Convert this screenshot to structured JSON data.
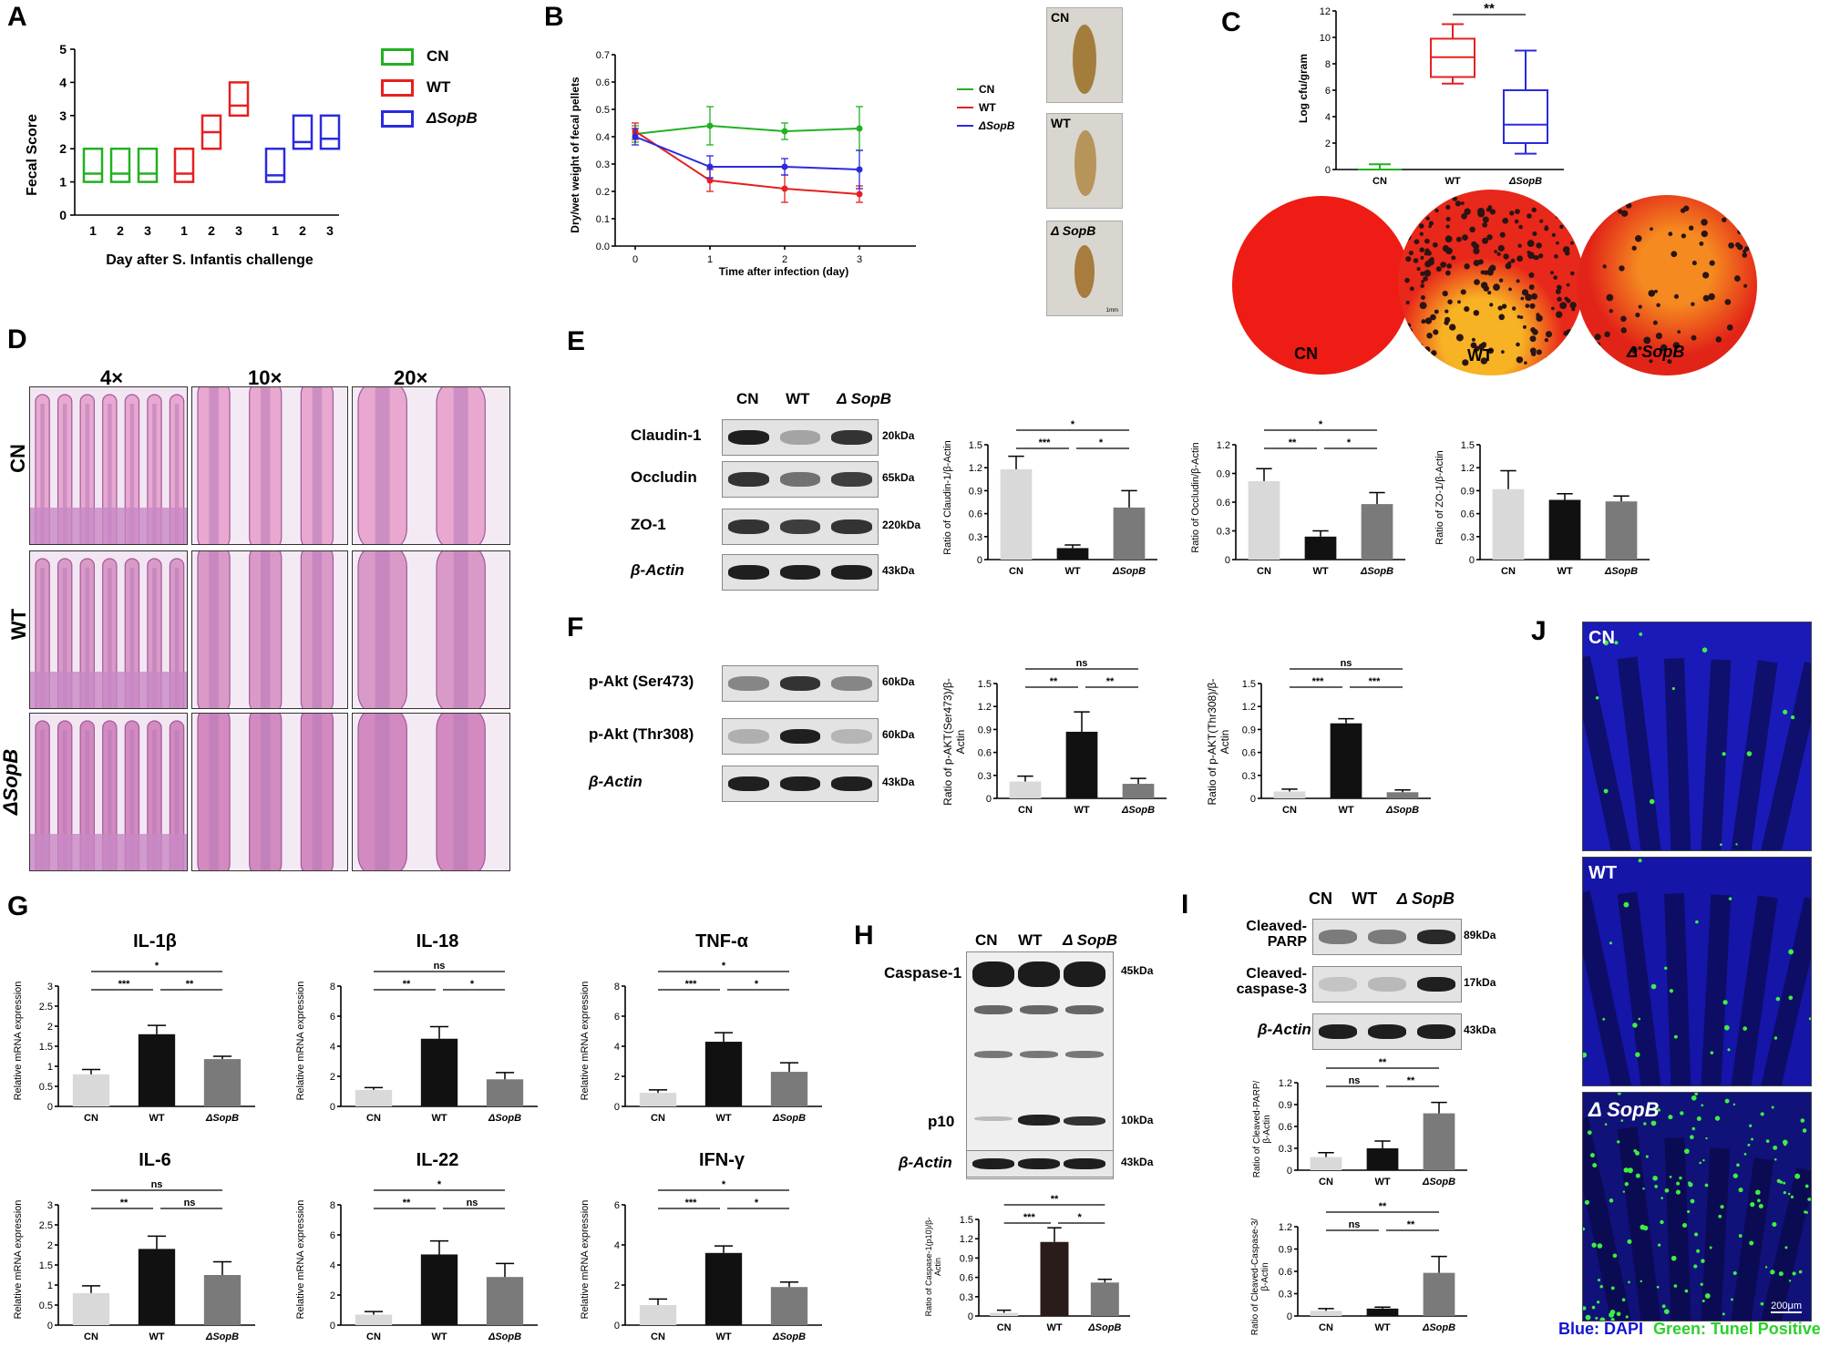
{
  "panel_letters": {
    "A": "A",
    "B": "B",
    "C": "C",
    "D": "D",
    "E": "E",
    "F": "F",
    "G": "G",
    "H": "H",
    "I": "I",
    "J": "J"
  },
  "groups": [
    "CN",
    "WT",
    "ΔSopB"
  ],
  "colors": {
    "cn": "#22b022",
    "wt": "#e52020",
    "sopb": "#2a2ae0",
    "bar_cn": "#d9d9d9",
    "bar_wt": "#111111",
    "bar_sopb": "#7a7a7a",
    "bar_wt_h": "#2a1c1a"
  },
  "A": {
    "ylabel": "Fecal Score",
    "xlabel": "Day after S. Infantis challenge",
    "legend": [
      "CN",
      "WT",
      "ΔSopB"
    ],
    "days": [
      "1",
      "2",
      "3"
    ],
    "yticks": [
      "0",
      "1",
      "2",
      "3",
      "4",
      "5"
    ]
  },
  "B": {
    "ylabel": "Dry/wet weight of fecal pellets",
    "xlabel": "Time after infection (day)",
    "legend": [
      "CN",
      "WT",
      "ΔSopB"
    ],
    "photo_labels": [
      "CN",
      "WT",
      "Δ SopB"
    ],
    "scale_text": "1mm"
  },
  "C": {
    "ylabel": "Log cfu/gram",
    "sig": "**",
    "plate_labels": [
      "CN",
      "WT",
      "Δ SopB"
    ]
  },
  "D": {
    "mag": [
      "4×",
      "10×",
      "20×"
    ],
    "rows": [
      "CN",
      "WT",
      "ΔSopB"
    ]
  },
  "E": {
    "lanes": [
      "CN",
      "WT",
      "Δ SopB"
    ],
    "proteins": [
      "Claudin-1",
      "Occludin",
      "ZO-1",
      "β-Actin"
    ],
    "sizes": [
      "20kDa",
      "65kDa",
      "220kDa",
      "43kDa"
    ],
    "ylabels": [
      "Ratio of Claudin-1/β-Actin",
      "Ratio of Occludin/β-Actin",
      "Ratio of ZO-1/β-Actin"
    ]
  },
  "F": {
    "proteins": [
      "p-Akt (Ser473)",
      "p-Akt (Thr308)",
      "β-Actin"
    ],
    "sizes": [
      "60kDa",
      "60kDa",
      "43kDa"
    ],
    "ylabels": [
      "Ratio of p-AKT(Ser473)/β-Actin",
      "Ratio of p-AKT(Thr308)/β-Actin"
    ]
  },
  "G": {
    "titles": [
      "IL-1β",
      "IL-18",
      "TNF-α",
      "IL-6",
      "IL-22",
      "IFN-γ"
    ],
    "ylabel": "Relative mRNA expression"
  },
  "H": {
    "lanes": [
      "CN",
      "WT",
      "Δ SopB"
    ],
    "proteins": [
      "Caspase-1",
      "p10",
      "β-Actin"
    ],
    "sizes": [
      "45kDa",
      "10kDa",
      "43kDa"
    ],
    "ylabel": "Ratio of Caspase-1(p10)/β-Actin"
  },
  "I": {
    "lanes": [
      "CN",
      "WT",
      "Δ SopB"
    ],
    "proteins": [
      "Cleaved-PARP",
      "Cleaved-caspase-3",
      "β-Actin"
    ],
    "sizes": [
      "89kDa",
      "17kDa",
      "43kDa"
    ],
    "ylabels": [
      "Ratio of Cleaved-PARP/β-Actin",
      "Ratio of Cleaved-Caspase-3/β-Actin"
    ]
  },
  "J": {
    "labels": [
      "CN",
      "WT",
      "Δ SopB"
    ],
    "scale": "200μm",
    "caption_blue": "Blue: DAPI",
    "caption_green": "Green: Tunel Positive"
  },
  "chart_data": [
    {
      "id": "A",
      "type": "box",
      "ylim": [
        0,
        5
      ],
      "categories": [
        "1",
        "2",
        "3"
      ],
      "series": [
        {
          "name": "CN",
          "boxes": [
            [
              1,
              1.25,
              2
            ],
            [
              1,
              1.25,
              2
            ],
            [
              1,
              1.25,
              2
            ]
          ]
        },
        {
          "name": "WT",
          "boxes": [
            [
              1,
              1.25,
              2
            ],
            [
              2,
              2.5,
              3
            ],
            [
              3,
              3.3,
              4
            ]
          ]
        },
        {
          "name": "ΔSopB",
          "boxes": [
            [
              1,
              1.2,
              2
            ],
            [
              2,
              2.2,
              3
            ],
            [
              2,
              2.3,
              3
            ]
          ]
        }
      ]
    },
    {
      "id": "B",
      "type": "line",
      "x": [
        0,
        1,
        2,
        3
      ],
      "ylim": [
        0,
        0.7
      ],
      "series": [
        {
          "name": "CN",
          "values": [
            0.41,
            0.44,
            0.42,
            0.43
          ],
          "err": [
            0.03,
            0.07,
            0.03,
            0.08
          ]
        },
        {
          "name": "WT",
          "values": [
            0.42,
            0.24,
            0.21,
            0.19
          ],
          "err": [
            0.03,
            0.04,
            0.05,
            0.03
          ]
        },
        {
          "name": "ΔSopB",
          "values": [
            0.4,
            0.29,
            0.29,
            0.28
          ],
          "err": [
            0.03,
            0.04,
            0.03,
            0.07
          ]
        }
      ]
    },
    {
      "id": "C",
      "type": "box",
      "ylim": [
        0,
        12
      ],
      "yticks": [
        0,
        2,
        4,
        6,
        8,
        10,
        12
      ],
      "categories": [
        "CN",
        "WT",
        "ΔSopB"
      ],
      "boxes": [
        [
          0,
          0,
          0,
          0,
          0.4
        ],
        [
          6.5,
          7,
          8.5,
          9.9,
          11
        ],
        [
          1.2,
          2,
          3.4,
          6,
          9
        ]
      ]
    },
    {
      "id": "E1",
      "type": "bar",
      "ylim": [
        0,
        1.5
      ],
      "yticks": [
        0,
        0.3,
        0.6,
        0.9,
        1.2,
        1.5
      ],
      "categories": [
        "CN",
        "WT",
        "ΔSopB"
      ],
      "values": [
        1.18,
        0.15,
        0.68
      ],
      "err": [
        0.17,
        0.04,
        0.22
      ],
      "sig": [
        {
          "a": 0,
          "b": 2,
          "t": "*"
        },
        {
          "a": 0,
          "b": 1,
          "t": "***"
        },
        {
          "a": 1,
          "b": 2,
          "t": "*"
        }
      ]
    },
    {
      "id": "E2",
      "type": "bar",
      "ylim": [
        0,
        1.2
      ],
      "yticks": [
        0,
        0.3,
        0.6,
        0.9,
        1.2
      ],
      "categories": [
        "CN",
        "WT",
        "ΔSopB"
      ],
      "values": [
        0.82,
        0.24,
        0.58
      ],
      "err": [
        0.13,
        0.06,
        0.12
      ],
      "sig": [
        {
          "a": 0,
          "b": 2,
          "t": "*"
        },
        {
          "a": 0,
          "b": 1,
          "t": "**"
        },
        {
          "a": 1,
          "b": 2,
          "t": "*"
        }
      ]
    },
    {
      "id": "E3",
      "type": "bar",
      "ylim": [
        0,
        1.5
      ],
      "yticks": [
        0,
        0.3,
        0.6,
        0.9,
        1.2,
        1.5
      ],
      "categories": [
        "CN",
        "WT",
        "ΔSopB"
      ],
      "values": [
        0.92,
        0.78,
        0.76
      ],
      "err": [
        0.24,
        0.08,
        0.07
      ],
      "sig": []
    },
    {
      "id": "F1",
      "type": "bar",
      "ylim": [
        0,
        1.5
      ],
      "yticks": [
        0,
        0.3,
        0.6,
        0.9,
        1.2,
        1.5
      ],
      "categories": [
        "CN",
        "WT",
        "ΔSopB"
      ],
      "values": [
        0.22,
        0.87,
        0.19
      ],
      "err": [
        0.07,
        0.26,
        0.07
      ],
      "sig": [
        {
          "a": 0,
          "b": 2,
          "t": "ns"
        },
        {
          "a": 0,
          "b": 1,
          "t": "**"
        },
        {
          "a": 1,
          "b": 2,
          "t": "**"
        }
      ]
    },
    {
      "id": "F2",
      "type": "bar",
      "ylim": [
        0,
        1.5
      ],
      "yticks": [
        0,
        0.3,
        0.6,
        0.9,
        1.2,
        1.5
      ],
      "categories": [
        "CN",
        "WT",
        "ΔSopB"
      ],
      "values": [
        0.09,
        0.98,
        0.08
      ],
      "err": [
        0.03,
        0.06,
        0.03
      ],
      "sig": [
        {
          "a": 0,
          "b": 2,
          "t": "ns"
        },
        {
          "a": 0,
          "b": 1,
          "t": "***"
        },
        {
          "a": 1,
          "b": 2,
          "t": "***"
        }
      ]
    },
    {
      "id": "G1",
      "type": "bar",
      "ylim": [
        0,
        3.0
      ],
      "yticks": [
        0,
        0.5,
        1.0,
        1.5,
        2.0,
        2.5,
        3.0
      ],
      "categories": [
        "CN",
        "WT",
        "ΔSopB"
      ],
      "values": [
        0.8,
        1.8,
        1.18
      ],
      "err": [
        0.12,
        0.22,
        0.07
      ],
      "sig": [
        {
          "a": 0,
          "b": 2,
          "t": "*"
        },
        {
          "a": 0,
          "b": 1,
          "t": "***"
        },
        {
          "a": 1,
          "b": 2,
          "t": "**"
        }
      ]
    },
    {
      "id": "G2",
      "type": "bar",
      "ylim": [
        0,
        8
      ],
      "yticks": [
        0,
        2,
        4,
        6,
        8
      ],
      "categories": [
        "CN",
        "WT",
        "ΔSopB"
      ],
      "values": [
        1.1,
        4.5,
        1.8
      ],
      "err": [
        0.15,
        0.8,
        0.45
      ],
      "sig": [
        {
          "a": 0,
          "b": 2,
          "t": "ns"
        },
        {
          "a": 0,
          "b": 1,
          "t": "**"
        },
        {
          "a": 1,
          "b": 2,
          "t": "*"
        }
      ]
    },
    {
      "id": "G3",
      "type": "bar",
      "ylim": [
        0,
        8
      ],
      "yticks": [
        0,
        2,
        4,
        6,
        8
      ],
      "categories": [
        "CN",
        "WT",
        "ΔSopB"
      ],
      "values": [
        0.9,
        4.3,
        2.3
      ],
      "err": [
        0.2,
        0.6,
        0.6
      ],
      "sig": [
        {
          "a": 0,
          "b": 2,
          "t": "*"
        },
        {
          "a": 0,
          "b": 1,
          "t": "***"
        },
        {
          "a": 1,
          "b": 2,
          "t": "*"
        }
      ]
    },
    {
      "id": "G4",
      "type": "bar",
      "ylim": [
        0,
        3.0
      ],
      "yticks": [
        0,
        0.5,
        1.0,
        1.5,
        2.0,
        2.5,
        3.0
      ],
      "categories": [
        "CN",
        "WT",
        "ΔSopB"
      ],
      "values": [
        0.8,
        1.9,
        1.25
      ],
      "err": [
        0.18,
        0.32,
        0.33
      ],
      "sig": [
        {
          "a": 0,
          "b": 2,
          "t": "ns"
        },
        {
          "a": 0,
          "b": 1,
          "t": "**"
        },
        {
          "a": 1,
          "b": 2,
          "t": "ns"
        }
      ]
    },
    {
      "id": "G5",
      "type": "bar",
      "ylim": [
        0,
        8
      ],
      "yticks": [
        0,
        2,
        4,
        6,
        8
      ],
      "categories": [
        "CN",
        "WT",
        "ΔSopB"
      ],
      "values": [
        0.7,
        4.7,
        3.2
      ],
      "err": [
        0.2,
        0.9,
        0.9
      ],
      "sig": [
        {
          "a": 0,
          "b": 2,
          "t": "*"
        },
        {
          "a": 0,
          "b": 1,
          "t": "**"
        },
        {
          "a": 1,
          "b": 2,
          "t": "ns"
        }
      ]
    },
    {
      "id": "G6",
      "type": "bar",
      "ylim": [
        0,
        6
      ],
      "yticks": [
        0,
        2,
        4,
        6
      ],
      "categories": [
        "CN",
        "WT",
        "ΔSopB"
      ],
      "values": [
        1.0,
        3.6,
        1.9
      ],
      "err": [
        0.3,
        0.35,
        0.25
      ],
      "sig": [
        {
          "a": 0,
          "b": 2,
          "t": "*"
        },
        {
          "a": 0,
          "b": 1,
          "t": "***"
        },
        {
          "a": 1,
          "b": 2,
          "t": "*"
        }
      ]
    },
    {
      "id": "H1",
      "type": "bar",
      "ylim": [
        0,
        1.5
      ],
      "yticks": [
        0,
        0.3,
        0.6,
        0.9,
        1.2,
        1.5
      ],
      "categories": [
        "CN",
        "WT",
        "ΔSopB"
      ],
      "values": [
        0.05,
        1.15,
        0.52
      ],
      "err": [
        0.04,
        0.22,
        0.05
      ],
      "sig": [
        {
          "a": 0,
          "b": 2,
          "t": "**"
        },
        {
          "a": 0,
          "b": 1,
          "t": "***"
        },
        {
          "a": 1,
          "b": 2,
          "t": "*"
        }
      ]
    },
    {
      "id": "I1",
      "type": "bar",
      "ylim": [
        0,
        1.2
      ],
      "yticks": [
        0,
        0.3,
        0.6,
        0.9,
        1.2
      ],
      "categories": [
        "CN",
        "WT",
        "ΔSopB"
      ],
      "values": [
        0.18,
        0.3,
        0.78
      ],
      "err": [
        0.06,
        0.1,
        0.15
      ],
      "sig": [
        {
          "a": 0,
          "b": 2,
          "t": "**"
        },
        {
          "a": 0,
          "b": 1,
          "t": "ns"
        },
        {
          "a": 1,
          "b": 2,
          "t": "**"
        }
      ]
    },
    {
      "id": "I2",
      "type": "bar",
      "ylim": [
        0,
        1.2
      ],
      "yticks": [
        0,
        0.3,
        0.6,
        0.9,
        1.2
      ],
      "categories": [
        "CN",
        "WT",
        "ΔSopB"
      ],
      "values": [
        0.07,
        0.1,
        0.58
      ],
      "err": [
        0.03,
        0.02,
        0.22
      ],
      "sig": [
        {
          "a": 0,
          "b": 2,
          "t": "**"
        },
        {
          "a": 0,
          "b": 1,
          "t": "ns"
        },
        {
          "a": 1,
          "b": 2,
          "t": "**"
        }
      ]
    }
  ]
}
